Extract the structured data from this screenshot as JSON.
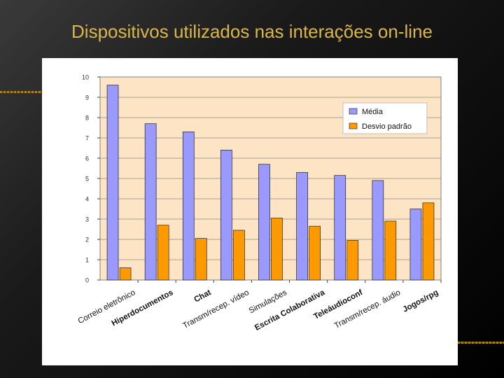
{
  "slide": {
    "title": "Dispositivos utilizados nas interações on-line"
  },
  "colors": {
    "plot_bg": "#FCE4C4",
    "media": "#9999FF",
    "desvio": "#FF9900",
    "title": "#D9B74A"
  },
  "chart_data": {
    "type": "bar",
    "title": "",
    "xlabel": "",
    "ylabel": "",
    "ylim": [
      0,
      10
    ],
    "yticks": [
      "0",
      "1",
      "2",
      "3",
      "4",
      "5",
      "6",
      "7",
      "8",
      "9",
      "10"
    ],
    "grid": true,
    "legend": "top-right",
    "categories": [
      "Correio eletrônico",
      "Hiperdocumentos",
      "Chat",
      "Transm/recep. vídeo",
      "Simulações",
      "Escrita Colaborativa",
      "Teleáudioconf",
      "Transm/recep. áudio",
      "Jogos/rpg"
    ],
    "series": [
      {
        "name": "Média",
        "values": [
          9.6,
          7.7,
          7.3,
          6.4,
          5.7,
          5.3,
          5.15,
          4.9,
          3.5
        ]
      },
      {
        "name": "Desvio padrão",
        "values": [
          0.6,
          2.7,
          2.05,
          2.45,
          3.05,
          2.65,
          1.95,
          2.9,
          3.8
        ]
      }
    ]
  }
}
